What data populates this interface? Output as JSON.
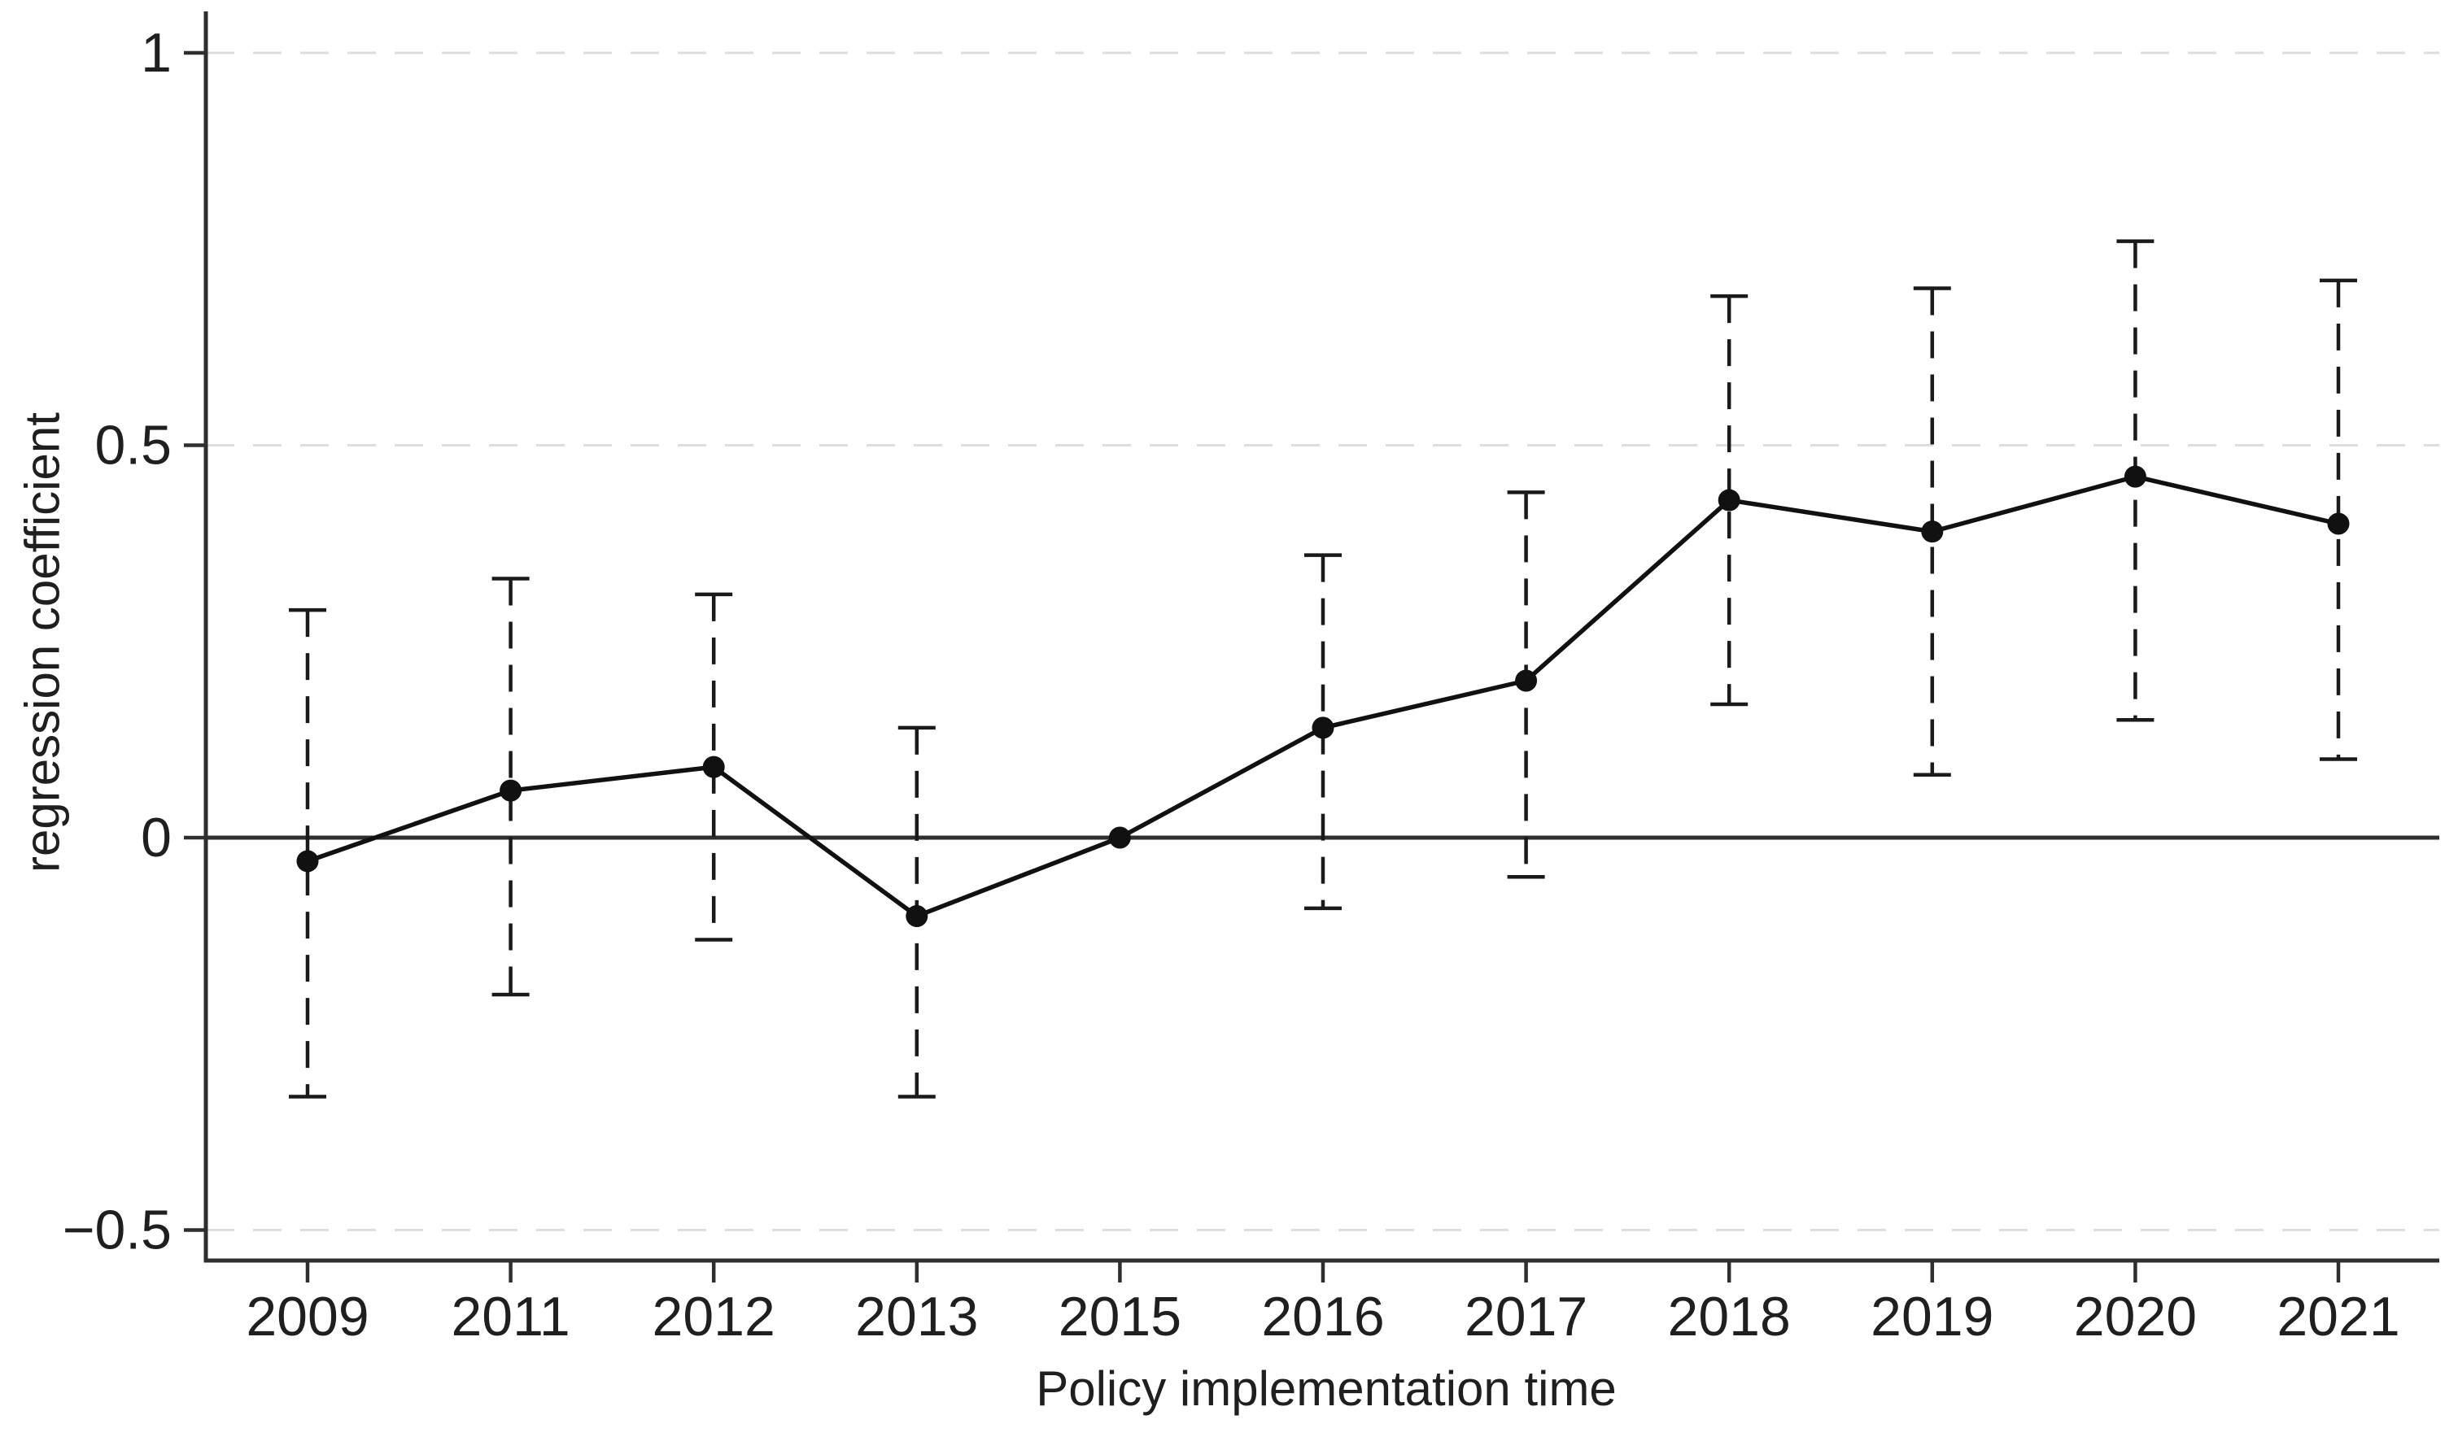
{
  "figure": {
    "background_color": "#ffffff"
  },
  "chart_data": {
    "type": "line",
    "subtype": "event-study-coefficient-plot",
    "title": "",
    "xlabel": "Policy implementation time",
    "ylabel": "regression coefficient",
    "categories": [
      "2009",
      "2011",
      "2012",
      "2013",
      "2015",
      "2016",
      "2017",
      "2018",
      "2019",
      "2020",
      "2021"
    ],
    "series": [
      {
        "name": "regression coefficient",
        "values": [
          -0.03,
          0.06,
          0.09,
          -0.1,
          0.0,
          0.14,
          0.2,
          0.43,
          0.39,
          0.46,
          0.4
        ],
        "ci_low": [
          -0.33,
          -0.2,
          -0.13,
          -0.33,
          null,
          -0.09,
          -0.05,
          0.17,
          0.08,
          0.15,
          0.1
        ],
        "ci_high": [
          0.29,
          0.33,
          0.31,
          0.14,
          null,
          0.36,
          0.44,
          0.69,
          0.7,
          0.76,
          0.71
        ]
      }
    ],
    "reference_category": "2015",
    "ylim": [
      -0.54,
      1.05
    ],
    "yticks": [
      -0.5,
      0,
      0.5,
      1
    ],
    "ytick_labels": [
      "−0.5",
      "0",
      "0.5",
      "1"
    ],
    "xtick_labels": [
      "2009",
      "2011",
      "2012",
      "2013",
      "2015",
      "2016",
      "2017",
      "2018",
      "2019",
      "2020",
      "2021"
    ],
    "zero_line": true,
    "grid": "horizontal dashed gridlines at -0.5, 0.5 and 1; solid line at 0",
    "legend_position": "none",
    "marker": "filled-circle",
    "error_bar_style": "dashed with caps",
    "colors": {
      "series": "#111111",
      "error_bar": "#1a1a1a",
      "grid": "#dedede",
      "axis": "#2e2e2e",
      "text": "#1f1f1f",
      "background": "#ffffff"
    }
  }
}
